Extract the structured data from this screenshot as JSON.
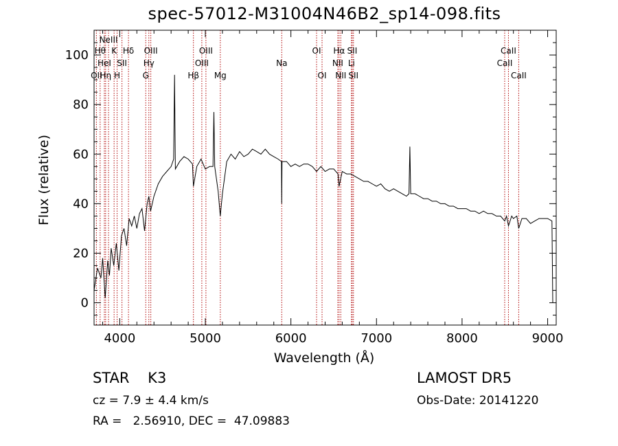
{
  "header": {
    "title": "spec-57012-M31004N46B2_sp14-098.fits"
  },
  "info": {
    "class_line": "STAR    K3",
    "cz_line": "cz = 7.9 ± 4.4 km/s",
    "radec_line": "RA =   2.56910, DEC =  47.09883",
    "survey": "LAMOST DR5",
    "obs_date": "Obs-Date: 20141220"
  },
  "chart_data": {
    "type": "line",
    "title": "spec-57012-M31004N46B2_sp14-098.fits",
    "xlabel": "Wavelength (Å)",
    "ylabel": "Flux (relative)",
    "xlim": [
      3700,
      9100
    ],
    "ylim": [
      -9,
      110
    ],
    "x_ticks": [
      4000,
      5000,
      6000,
      7000,
      8000,
      9000
    ],
    "y_ticks": [
      0,
      20,
      40,
      60,
      80,
      100
    ],
    "grid": false,
    "series": [
      {
        "x": [
          3700,
          3740,
          3780,
          3800,
          3830,
          3860,
          3880,
          3900,
          3930,
          3960,
          3990,
          4020,
          4050,
          4080,
          4110,
          4140,
          4170,
          4200,
          4230,
          4260,
          4290,
          4320,
          4340,
          4360,
          4400,
          4450,
          4500,
          4550,
          4600,
          4630,
          4640,
          4650,
          4700,
          4750,
          4800,
          4850,
          4861,
          4900,
          4950,
          5000,
          5050,
          5090,
          5100,
          5110,
          5150,
          5175,
          5200,
          5250,
          5300,
          5350,
          5400,
          5450,
          5500,
          5550,
          5600,
          5650,
          5700,
          5750,
          5800,
          5850,
          5890,
          5893,
          5896,
          5950,
          6000,
          6050,
          6100,
          6150,
          6200,
          6250,
          6300,
          6350,
          6400,
          6450,
          6500,
          6550,
          6563,
          6600,
          6650,
          6700,
          6750,
          6800,
          6850,
          6900,
          6950,
          7000,
          7050,
          7100,
          7150,
          7200,
          7250,
          7300,
          7350,
          7380,
          7390,
          7400,
          7450,
          7500,
          7550,
          7600,
          7650,
          7700,
          7750,
          7800,
          7850,
          7900,
          7950,
          8000,
          8050,
          8100,
          8150,
          8200,
          8250,
          8300,
          8350,
          8400,
          8450,
          8498,
          8520,
          8542,
          8580,
          8600,
          8640,
          8662,
          8700,
          8750,
          8800,
          8850,
          8900,
          8950,
          9000,
          9050,
          9060
        ],
        "y": [
          5,
          14,
          10,
          18,
          2,
          17,
          11,
          22,
          15,
          24,
          13,
          27,
          30,
          23,
          34,
          31,
          35,
          30,
          36,
          38,
          29,
          40,
          43,
          37,
          43,
          48,
          51,
          53,
          55,
          58,
          92,
          54,
          57,
          59,
          58,
          56,
          47,
          55,
          58,
          54,
          55,
          55,
          77,
          55,
          45,
          35,
          44,
          57,
          60,
          58,
          61,
          59,
          60,
          62,
          61,
          60,
          62,
          60,
          59,
          58,
          57,
          40,
          57,
          57,
          55,
          56,
          55,
          56,
          56,
          55,
          53,
          55,
          53,
          54,
          54,
          52,
          47,
          53,
          52,
          52,
          51,
          50,
          49,
          49,
          48,
          47,
          48,
          46,
          45,
          46,
          45,
          44,
          43,
          44,
          63,
          44,
          44,
          43,
          42,
          42,
          41,
          41,
          40,
          40,
          39,
          39,
          38,
          38,
          38,
          37,
          37,
          36,
          37,
          36,
          36,
          35,
          35,
          33,
          35,
          31,
          35,
          34,
          35,
          30,
          34,
          34,
          32,
          33,
          34,
          34,
          34,
          33,
          0
        ]
      }
    ],
    "line_markers": [
      {
        "x": 3727,
        "labels": [
          "OII"
        ],
        "row": 3
      },
      {
        "x": 3771,
        "labels": [
          "Hθ"
        ],
        "row": 1
      },
      {
        "x": 3820,
        "labels": [
          "HeI"
        ],
        "row": 2
      },
      {
        "x": 3835,
        "labels": [
          "Hη"
        ],
        "row": 3
      },
      {
        "x": 3869,
        "labels": [
          "NeIII"
        ],
        "row": 0
      },
      {
        "x": 3934,
        "labels": [
          "K"
        ],
        "row": 1
      },
      {
        "x": 3969,
        "labels": [
          "H"
        ],
        "row": 3
      },
      {
        "x": 4026,
        "labels": [
          "SII"
        ],
        "row": 2
      },
      {
        "x": 4102,
        "labels": [
          "Hδ"
        ],
        "row": 1
      },
      {
        "x": 4304,
        "labels": [
          "G"
        ],
        "row": 3
      },
      {
        "x": 4340,
        "labels": [
          "Hγ"
        ],
        "row": 2
      },
      {
        "x": 4363,
        "labels": [
          "OIII"
        ],
        "row": 1
      },
      {
        "x": 4861,
        "labels": [
          "Hβ"
        ],
        "row": 3
      },
      {
        "x": 4959,
        "labels": [
          "OIII"
        ],
        "row": 2
      },
      {
        "x": 5007,
        "labels": [
          "OIII"
        ],
        "row": 1
      },
      {
        "x": 5175,
        "labels": [
          "Mg"
        ],
        "row": 3
      },
      {
        "x": 5893,
        "labels": [
          "Na"
        ],
        "row": 2
      },
      {
        "x": 6300,
        "labels": [
          "OI"
        ],
        "row": 1
      },
      {
        "x": 6364,
        "labels": [
          "OI"
        ],
        "row": 3
      },
      {
        "x": 6548,
        "labels": [
          "NII"
        ],
        "row": 2
      },
      {
        "x": 6563,
        "labels": [
          "Hα"
        ],
        "row": 1
      },
      {
        "x": 6583,
        "labels": [
          "NII"
        ],
        "row": 3
      },
      {
        "x": 6708,
        "labels": [
          "Li"
        ],
        "row": 2
      },
      {
        "x": 6716,
        "labels": [
          "SII"
        ],
        "row": 1
      },
      {
        "x": 6731,
        "labels": [
          "SII"
        ],
        "row": 3
      },
      {
        "x": 8498,
        "labels": [
          "CaII"
        ],
        "row": 2
      },
      {
        "x": 8542,
        "labels": [
          "CaII"
        ],
        "row": 1
      },
      {
        "x": 8662,
        "labels": [
          "CaII"
        ],
        "row": 3
      }
    ],
    "colors": {
      "spectrum": "#000000",
      "line_markers": "#b00000",
      "axes": "#000000"
    }
  }
}
